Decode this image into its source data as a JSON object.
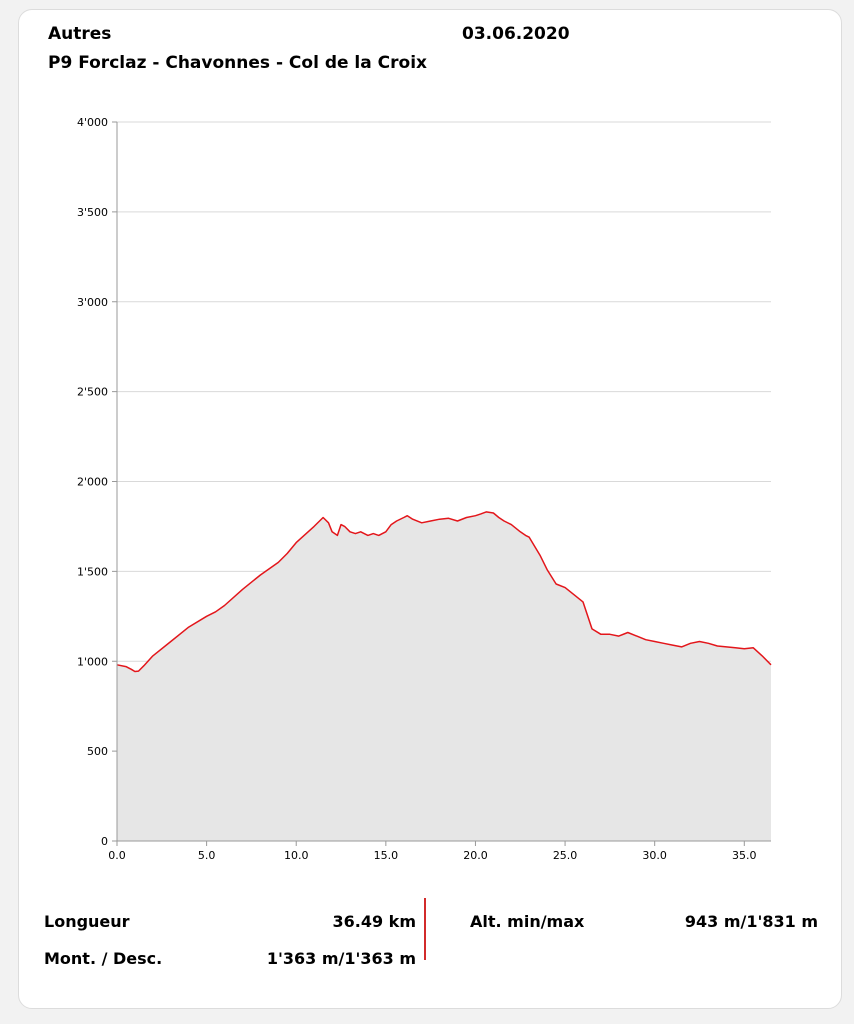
{
  "header": {
    "category": "Autres",
    "date": "03.06.2020",
    "route": "P9 Forclaz - Chavonnes - Col de la Croix"
  },
  "stats": {
    "length_label": "Longueur",
    "length_value": "36.49 km",
    "ascent_label": "Mont. / Desc.",
    "ascent_value": "1'363 m/1'363 m",
    "alt_label": "Alt. min/max",
    "alt_value": "943 m/1'831 m"
  },
  "colors": {
    "line": "#e3161b",
    "fill": "#e6e6e6",
    "grid": "#d9d9d9",
    "divider": "#d22b2b"
  },
  "chart_data": {
    "type": "area",
    "title": "",
    "xlabel": "",
    "ylabel": "",
    "xlim": [
      0,
      36.49
    ],
    "ylim": [
      0,
      4000
    ],
    "x_ticks": [
      0,
      5,
      10,
      15,
      20,
      25,
      30,
      35
    ],
    "x_tick_labels": [
      "0.0",
      "5.0",
      "10.0",
      "15.0",
      "20.0",
      "25.0",
      "30.0",
      "35.0"
    ],
    "y_ticks": [
      0,
      500,
      1000,
      1500,
      2000,
      2500,
      3000,
      3500,
      4000
    ],
    "y_tick_labels": [
      "0",
      "500",
      "1'000",
      "1'500",
      "2'000",
      "2'500",
      "3'000",
      "3'500",
      "4'000"
    ],
    "grid": true,
    "series": [
      {
        "x": [
          0,
          0.5,
          0.8,
          1.0,
          1.2,
          1.5,
          2.0,
          3.0,
          4.0,
          5.0,
          5.5,
          6.0,
          7.0,
          8.0,
          9.0,
          9.5,
          10.0,
          11.0,
          11.5,
          11.8,
          12.0,
          12.3,
          12.5,
          12.7,
          13.0,
          13.3,
          13.6,
          14.0,
          14.3,
          14.6,
          15.0,
          15.3,
          15.6,
          16.0,
          16.2,
          16.5,
          17.0,
          17.5,
          18.0,
          18.5,
          19.0,
          19.5,
          20.0,
          20.3,
          20.6,
          21.0,
          21.3,
          21.6,
          22.0,
          22.5,
          22.8,
          23.0,
          23.3,
          23.6,
          24.0,
          24.5,
          25.0,
          25.5,
          26.0,
          26.5,
          27.0,
          27.5,
          28.0,
          28.5,
          29.0,
          29.5,
          30.0,
          30.5,
          31.0,
          31.5,
          32.0,
          32.5,
          33.0,
          33.5,
          34.0,
          34.5,
          35.0,
          35.5,
          36.0,
          36.49
        ],
        "y": [
          980,
          970,
          955,
          943,
          945,
          975,
          1030,
          1110,
          1190,
          1250,
          1275,
          1310,
          1400,
          1480,
          1550,
          1600,
          1660,
          1750,
          1800,
          1770,
          1720,
          1700,
          1760,
          1750,
          1720,
          1710,
          1720,
          1700,
          1710,
          1700,
          1720,
          1760,
          1780,
          1800,
          1810,
          1790,
          1770,
          1780,
          1790,
          1795,
          1780,
          1800,
          1810,
          1820,
          1831,
          1825,
          1800,
          1780,
          1760,
          1720,
          1700,
          1690,
          1640,
          1590,
          1510,
          1430,
          1410,
          1370,
          1330,
          1180,
          1150,
          1150,
          1140,
          1160,
          1140,
          1120,
          1110,
          1100,
          1090,
          1080,
          1100,
          1110,
          1100,
          1085,
          1080,
          1075,
          1070,
          1075,
          1030,
          980
        ]
      }
    ]
  }
}
